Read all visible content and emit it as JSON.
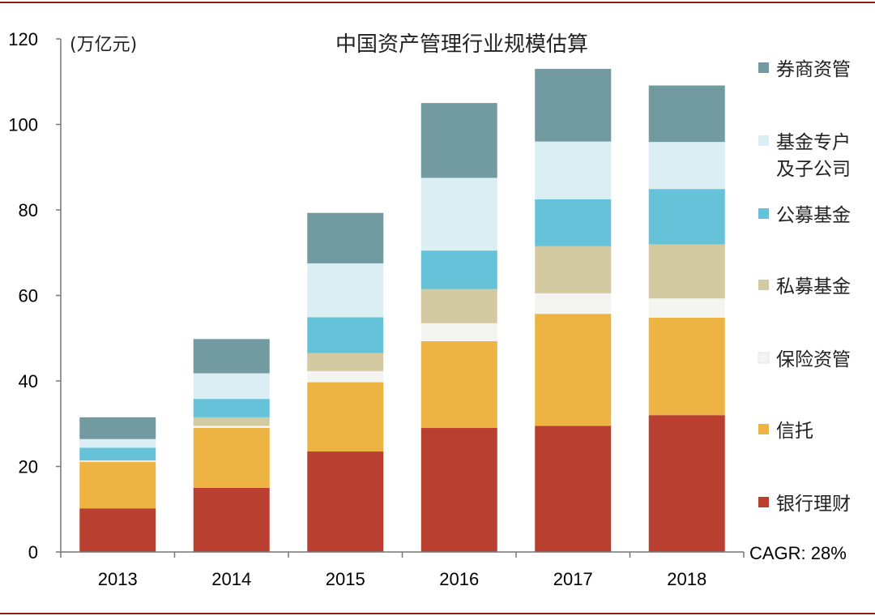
{
  "chart_data": {
    "type": "bar",
    "stacked": true,
    "title": "中国资产管理行业规模估算",
    "unit": "(万亿元)",
    "categories": [
      "2013",
      "2014",
      "2015",
      "2016",
      "2017",
      "2018"
    ],
    "ylim": [
      0,
      120
    ],
    "yticks": [
      0,
      20,
      40,
      60,
      80,
      100,
      120
    ],
    "grid": false,
    "legend_position": "right",
    "series": [
      {
        "name": "银行理财",
        "color": "#b94030",
        "values": [
          10.2,
          15.0,
          23.5,
          29.0,
          29.5,
          32.0
        ]
      },
      {
        "name": "信托",
        "color": "#edb444",
        "values": [
          10.9,
          14.0,
          16.2,
          20.3,
          26.2,
          22.8
        ]
      },
      {
        "name": "保险资管",
        "color": "#f4f5f1",
        "values": [
          0.3,
          0.5,
          2.6,
          4.2,
          4.8,
          4.5
        ]
      },
      {
        "name": "私募基金",
        "color": "#d3caa1",
        "values": [
          0.0,
          2.0,
          4.2,
          8.0,
          11.0,
          12.6
        ]
      },
      {
        "name": "公募基金",
        "color": "#66c2d9",
        "values": [
          3.0,
          4.3,
          8.4,
          9.0,
          11.0,
          13.0
        ]
      },
      {
        "name": "基金专户\n及子公司",
        "color": "#dbeef4",
        "values": [
          2.0,
          6.0,
          12.6,
          17.0,
          13.5,
          11.0
        ]
      },
      {
        "name": "券商资管",
        "color": "#729aa1",
        "values": [
          5.1,
          8.0,
          11.8,
          17.5,
          17.0,
          13.2
        ]
      }
    ],
    "annotations": [
      "CAGR: 28%"
    ]
  }
}
